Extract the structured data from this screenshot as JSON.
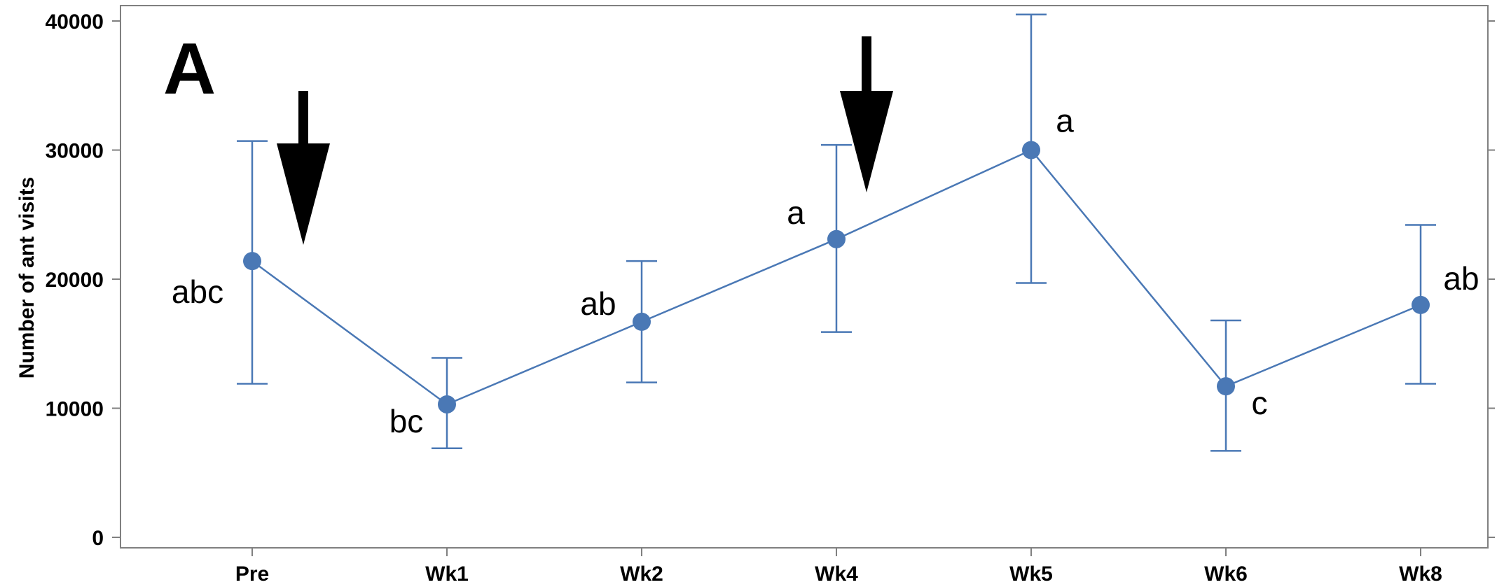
{
  "panel_label": "A",
  "chart_data": {
    "type": "line",
    "ylabel": "Number of ant visits",
    "xlabel": "",
    "categories": [
      "Pre",
      "Wk1",
      "Wk2",
      "Wk4",
      "Wk5",
      "Wk6",
      "Wk8"
    ],
    "series": [
      {
        "values": [
          21400,
          10300,
          16700,
          23100,
          30000,
          11700,
          18000
        ],
        "lower": [
          11900,
          6900,
          12000,
          15900,
          19700,
          6700,
          11900
        ],
        "upper": [
          30700,
          13900,
          21400,
          30400,
          40500,
          16800,
          24200
        ],
        "letters": [
          "abc",
          "bc",
          "ab",
          "a",
          "a",
          "c",
          "ab"
        ]
      }
    ],
    "ylim": [
      0,
      40000
    ],
    "yticks": [
      "0",
      "10000",
      "20000",
      "30000",
      "40000"
    ],
    "arrows_after": [
      "Pre",
      "Wk4"
    ],
    "grid": false,
    "legend": "none",
    "colors": {
      "series": "#4a78b5",
      "frame": "#808080",
      "text": "#000000"
    }
  }
}
